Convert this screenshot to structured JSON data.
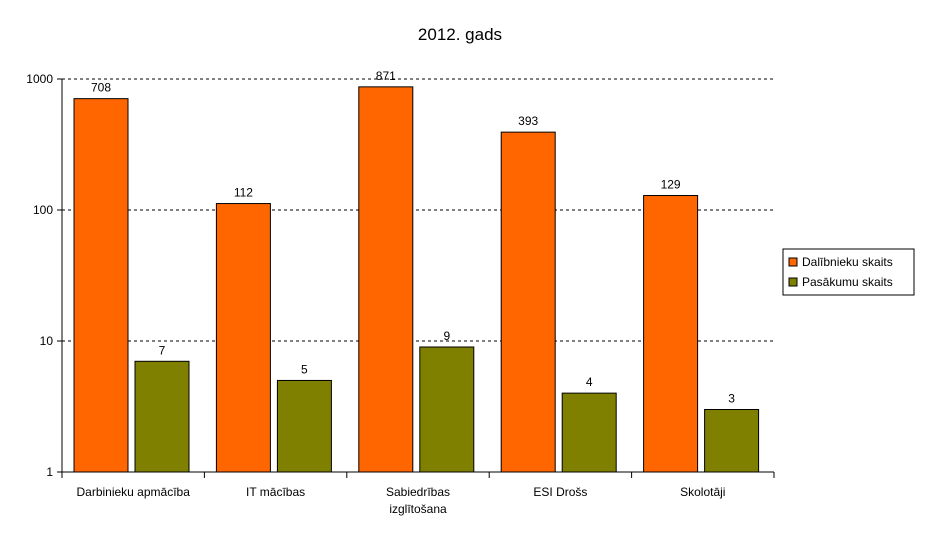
{
  "chart_data": {
    "type": "bar",
    "title": "2012. gads",
    "xlabel": "",
    "ylabel": "",
    "yscale": "log",
    "ylim": [
      1,
      1000
    ],
    "yticks": [
      "1",
      "10",
      "100",
      "1000"
    ],
    "categories": [
      [
        "Darbinieku apmācība"
      ],
      [
        "IT mācības"
      ],
      [
        "Sabiedrības",
        "izglītošana"
      ],
      [
        "ESI Drošs"
      ],
      [
        "Skolotāji"
      ]
    ],
    "series": [
      {
        "name": "Dalībnieku skaits",
        "color": "#FF6600",
        "values": [
          708,
          112,
          871,
          393,
          129
        ]
      },
      {
        "name": "Pasākumu skaits",
        "color": "#808000",
        "values": [
          7,
          5,
          9,
          4,
          3
        ]
      }
    ],
    "grid": true,
    "legend_position": "right"
  }
}
